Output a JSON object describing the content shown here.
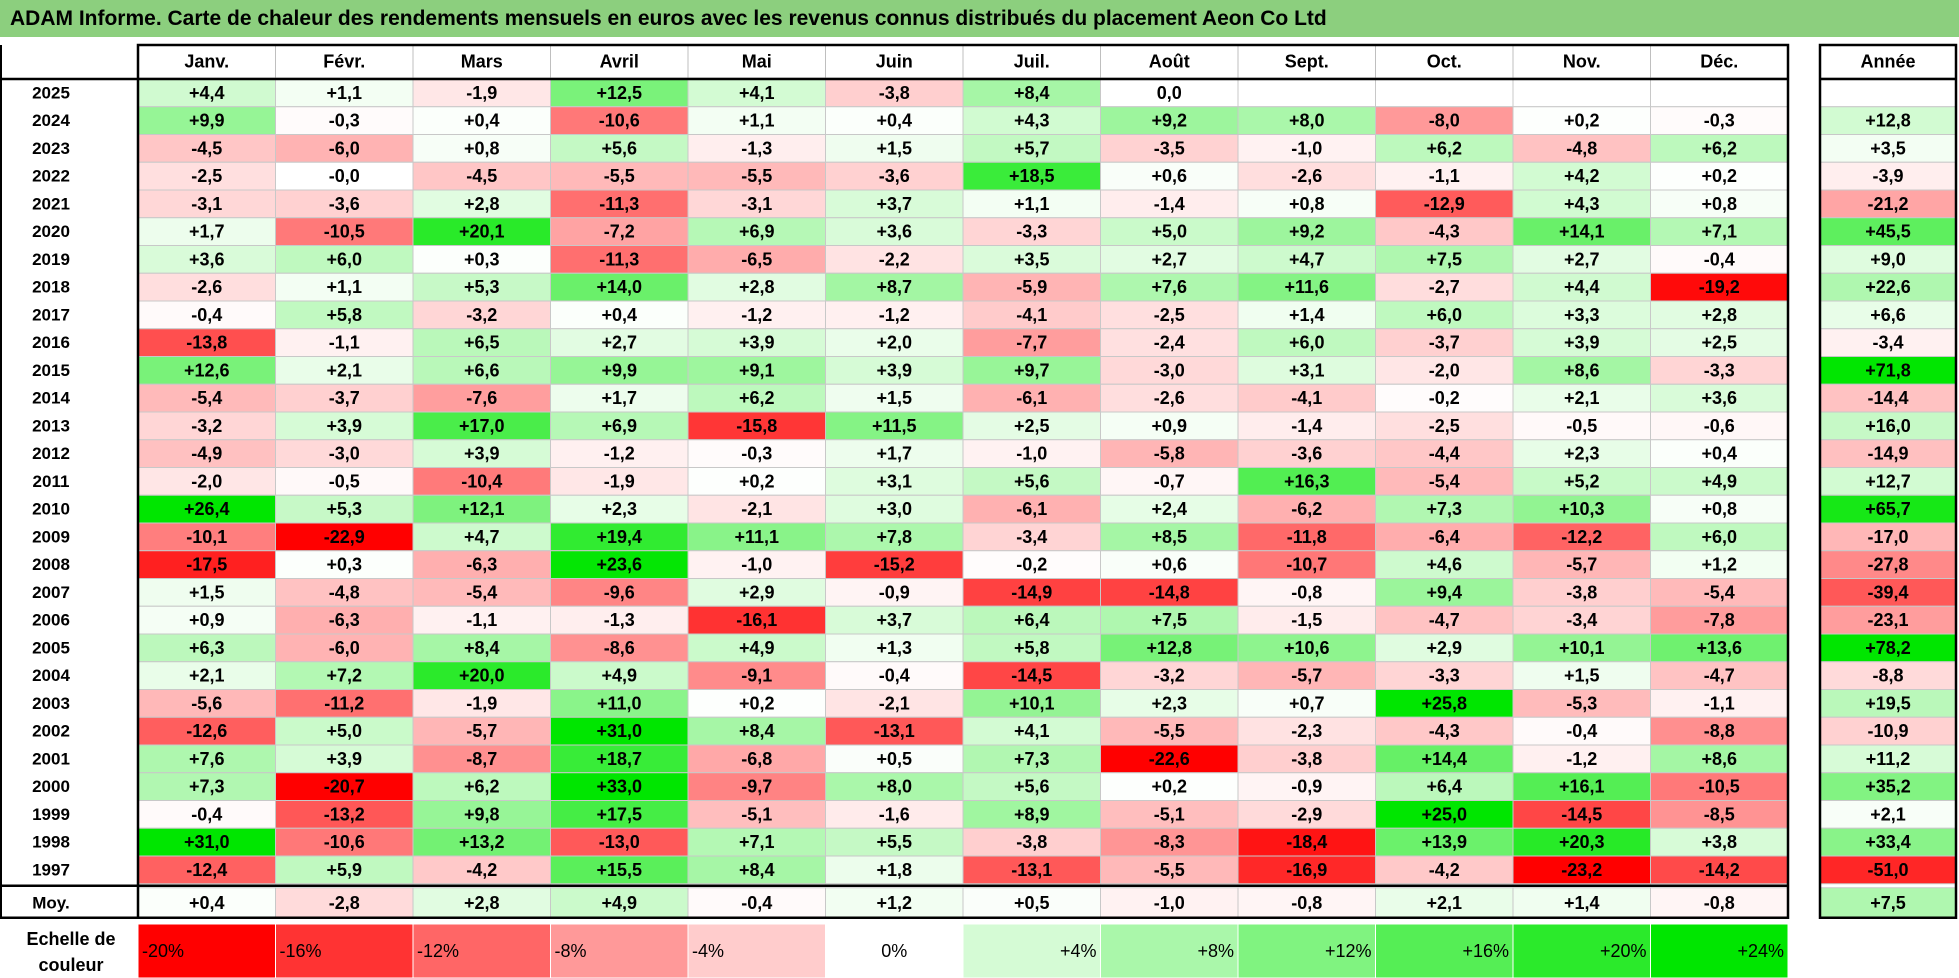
{
  "title": "ADAM Informe. Carte de chaleur des rendements mensuels en euros avec les revenus connus distribués du placement Aeon Co Ltd",
  "chart_data": {
    "type": "heatmap",
    "title": "ADAM Informe. Carte de chaleur des rendements mensuels en euros avec les revenus connus distribués du placement Aeon Co Ltd",
    "columns": [
      "Janv.",
      "Févr.",
      "Mars",
      "Avril",
      "Mai",
      "Juin",
      "Juil.",
      "Août",
      "Sept.",
      "Oct.",
      "Nov.",
      "Déc."
    ],
    "annual_header": "Année",
    "rows": [
      {
        "year": "2025",
        "values": [
          "+4,4",
          "+1,1",
          "-1,9",
          "+12,5",
          "+4,1",
          "-3,8",
          "+8,4",
          "0,0",
          "",
          "",
          "",
          ""
        ],
        "annual": ""
      },
      {
        "year": "2024",
        "values": [
          "+9,9",
          "-0,3",
          "+0,4",
          "-10,6",
          "+1,1",
          "+0,4",
          "+4,3",
          "+9,2",
          "+8,0",
          "-8,0",
          "+0,2",
          "-0,3"
        ],
        "annual": "+12,8"
      },
      {
        "year": "2023",
        "values": [
          "-4,5",
          "-6,0",
          "+0,8",
          "+5,6",
          "-1,3",
          "+1,5",
          "+5,7",
          "-3,5",
          "-1,0",
          "+6,2",
          "-4,8",
          "+6,2"
        ],
        "annual": "+3,5"
      },
      {
        "year": "2022",
        "values": [
          "-2,5",
          "-0,0",
          "-4,5",
          "-5,5",
          "-5,5",
          "-3,6",
          "+18,5",
          "+0,6",
          "-2,6",
          "-1,1",
          "+4,2",
          "+0,2"
        ],
        "annual": "-3,9"
      },
      {
        "year": "2021",
        "values": [
          "-3,1",
          "-3,6",
          "+2,8",
          "-11,3",
          "-3,1",
          "+3,7",
          "+1,1",
          "-1,4",
          "+0,8",
          "-12,9",
          "+4,3",
          "+0,8"
        ],
        "annual": "-21,2"
      },
      {
        "year": "2020",
        "values": [
          "+1,7",
          "-10,5",
          "+20,1",
          "-7,2",
          "+6,9",
          "+3,6",
          "-3,3",
          "+5,0",
          "+9,2",
          "-4,3",
          "+14,1",
          "+7,1"
        ],
        "annual": "+45,5"
      },
      {
        "year": "2019",
        "values": [
          "+3,6",
          "+6,0",
          "+0,3",
          "-11,3",
          "-6,5",
          "-2,2",
          "+3,5",
          "+2,7",
          "+4,7",
          "+7,5",
          "+2,7",
          "-0,4"
        ],
        "annual": "+9,0"
      },
      {
        "year": "2018",
        "values": [
          "-2,6",
          "+1,1",
          "+5,3",
          "+14,0",
          "+2,8",
          "+8,7",
          "-5,9",
          "+7,6",
          "+11,6",
          "-2,7",
          "+4,4",
          "-19,2"
        ],
        "annual": "+22,6"
      },
      {
        "year": "2017",
        "values": [
          "-0,4",
          "+5,8",
          "-3,2",
          "+0,4",
          "-1,2",
          "-1,2",
          "-4,1",
          "-2,5",
          "+1,4",
          "+6,0",
          "+3,3",
          "+2,8"
        ],
        "annual": "+6,6"
      },
      {
        "year": "2016",
        "values": [
          "-13,8",
          "-1,1",
          "+6,5",
          "+2,7",
          "+3,9",
          "+2,0",
          "-7,7",
          "-2,4",
          "+6,0",
          "-3,7",
          "+3,9",
          "+2,5"
        ],
        "annual": "-3,4"
      },
      {
        "year": "2015",
        "values": [
          "+12,6",
          "+2,1",
          "+6,6",
          "+9,9",
          "+9,1",
          "+3,9",
          "+9,7",
          "-3,0",
          "+3,1",
          "-2,0",
          "+8,6",
          "-3,3"
        ],
        "annual": "+71,8"
      },
      {
        "year": "2014",
        "values": [
          "-5,4",
          "-3,7",
          "-7,6",
          "+1,7",
          "+6,2",
          "+1,5",
          "-6,1",
          "-2,6",
          "-4,1",
          "-0,2",
          "+2,1",
          "+3,6"
        ],
        "annual": "-14,4"
      },
      {
        "year": "2013",
        "values": [
          "-3,2",
          "+3,9",
          "+17,0",
          "+6,9",
          "-15,8",
          "+11,5",
          "+2,5",
          "+0,9",
          "-1,4",
          "-2,5",
          "-0,5",
          "-0,6"
        ],
        "annual": "+16,0"
      },
      {
        "year": "2012",
        "values": [
          "-4,9",
          "-3,0",
          "+3,9",
          "-1,2",
          "-0,3",
          "+1,7",
          "-1,0",
          "-5,8",
          "-3,6",
          "-4,4",
          "+2,3",
          "+0,4"
        ],
        "annual": "-14,9"
      },
      {
        "year": "2011",
        "values": [
          "-2,0",
          "-0,5",
          "-10,4",
          "-1,9",
          "+0,2",
          "+3,1",
          "+5,6",
          "-0,7",
          "+16,3",
          "-5,4",
          "+5,2",
          "+4,9"
        ],
        "annual": "+12,7"
      },
      {
        "year": "2010",
        "values": [
          "+26,4",
          "+5,3",
          "+12,1",
          "+2,3",
          "-2,1",
          "+3,0",
          "-6,1",
          "+2,4",
          "-6,2",
          "+7,3",
          "+10,3",
          "+0,8"
        ],
        "annual": "+65,7"
      },
      {
        "year": "2009",
        "values": [
          "-10,1",
          "-22,9",
          "+4,7",
          "+19,4",
          "+11,1",
          "+7,8",
          "-3,4",
          "+8,5",
          "-11,8",
          "-6,4",
          "-12,2",
          "+6,0"
        ],
        "annual": "-17,0"
      },
      {
        "year": "2008",
        "values": [
          "-17,5",
          "+0,3",
          "-6,3",
          "+23,6",
          "-1,0",
          "-15,2",
          "-0,2",
          "+0,6",
          "-10,7",
          "+4,6",
          "-5,7",
          "+1,2"
        ],
        "annual": "-27,8"
      },
      {
        "year": "2007",
        "values": [
          "+1,5",
          "-4,8",
          "-5,4",
          "-9,6",
          "+2,9",
          "-0,9",
          "-14,9",
          "-14,8",
          "-0,8",
          "+9,4",
          "-3,8",
          "-5,4"
        ],
        "annual": "-39,4"
      },
      {
        "year": "2006",
        "values": [
          "+0,9",
          "-6,3",
          "-1,1",
          "-1,3",
          "-16,1",
          "+3,7",
          "+6,4",
          "+7,5",
          "-1,5",
          "-4,7",
          "-3,4",
          "-7,8"
        ],
        "annual": "-23,1"
      },
      {
        "year": "2005",
        "values": [
          "+6,3",
          "-6,0",
          "+8,4",
          "-8,6",
          "+4,9",
          "+1,3",
          "+5,8",
          "+12,8",
          "+10,6",
          "+2,9",
          "+10,1",
          "+13,6"
        ],
        "annual": "+78,2"
      },
      {
        "year": "2004",
        "values": [
          "+2,1",
          "+7,2",
          "+20,0",
          "+4,9",
          "-9,1",
          "-0,4",
          "-14,5",
          "-3,2",
          "-5,7",
          "-3,3",
          "+1,5",
          "-4,7"
        ],
        "annual": "-8,8"
      },
      {
        "year": "2003",
        "values": [
          "-5,6",
          "-11,2",
          "-1,9",
          "+11,0",
          "+0,2",
          "-2,1",
          "+10,1",
          "+2,3",
          "+0,7",
          "+25,8",
          "-5,3",
          "-1,1"
        ],
        "annual": "+19,5"
      },
      {
        "year": "2002",
        "values": [
          "-12,6",
          "+5,0",
          "-5,7",
          "+31,0",
          "+8,4",
          "-13,1",
          "+4,1",
          "-5,5",
          "-2,3",
          "-4,3",
          "-0,4",
          "-8,8"
        ],
        "annual": "-10,9"
      },
      {
        "year": "2001",
        "values": [
          "+7,6",
          "+3,9",
          "-8,7",
          "+18,7",
          "-6,8",
          "+0,5",
          "+7,3",
          "-22,6",
          "-3,8",
          "+14,4",
          "-1,2",
          "+8,6"
        ],
        "annual": "+11,2"
      },
      {
        "year": "2000",
        "values": [
          "+7,3",
          "-20,7",
          "+6,2",
          "+33,0",
          "-9,7",
          "+8,0",
          "+5,6",
          "+0,2",
          "-0,9",
          "+6,4",
          "+16,1",
          "-10,5"
        ],
        "annual": "+35,2"
      },
      {
        "year": "1999",
        "values": [
          "-0,4",
          "-13,2",
          "+9,8",
          "+17,5",
          "-5,1",
          "-1,6",
          "+8,9",
          "-5,1",
          "-2,9",
          "+25,0",
          "-14,5",
          "-8,5"
        ],
        "annual": "+2,1"
      },
      {
        "year": "1998",
        "values": [
          "+31,0",
          "-10,6",
          "+13,2",
          "-13,0",
          "+7,1",
          "+5,5",
          "-3,8",
          "-8,3",
          "-18,4",
          "+13,9",
          "+20,3",
          "+3,8"
        ],
        "annual": "+33,4"
      },
      {
        "year": "1997",
        "values": [
          "-12,4",
          "+5,9",
          "-4,2",
          "+15,5",
          "+8,4",
          "+1,8",
          "-13,1",
          "-5,5",
          "-16,9",
          "-4,2",
          "-23,2",
          "-14,2"
        ],
        "annual": "-51,0"
      }
    ],
    "average": {
      "label": "Moy.",
      "values": [
        "+0,4",
        "-2,8",
        "+2,8",
        "+4,9",
        "-0,4",
        "+1,2",
        "+0,5",
        "-1,0",
        "-0,8",
        "+2,1",
        "+1,4",
        "-0,8"
      ],
      "annual": "+7,5"
    },
    "color_scale": {
      "label_line1": "Echelle de",
      "label_line2": "couleur",
      "steps": [
        "-20%",
        "-16%",
        "-12%",
        "-8%",
        "-4%",
        "0%",
        "+4%",
        "+8%",
        "+12%",
        "+16%",
        "+20%",
        "+24%"
      ],
      "negative_color": "#ff0000",
      "zero_color": "#ffffff",
      "positive_color": "#00e600"
    }
  }
}
